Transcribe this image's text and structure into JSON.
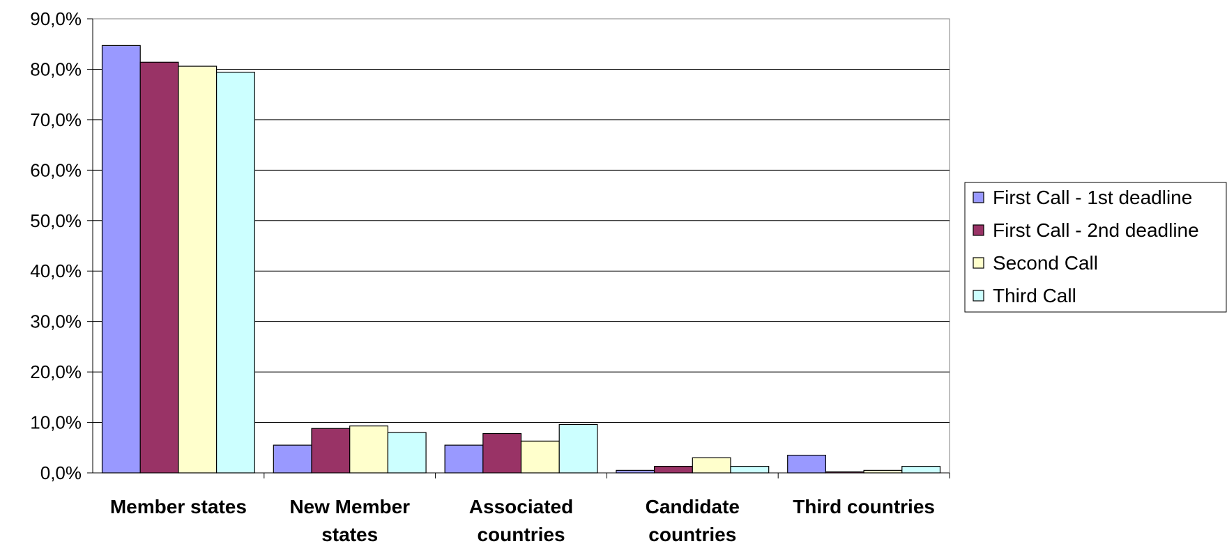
{
  "chart_data": {
    "type": "bar",
    "categories": [
      [
        "Member states"
      ],
      [
        "New Member",
        "states"
      ],
      [
        "Associated",
        "countries"
      ],
      [
        "Candidate",
        "countries"
      ],
      [
        "Third countries"
      ]
    ],
    "series": [
      {
        "name": "First Call - 1st deadline",
        "color": "#9999ff",
        "values": [
          84.7,
          5.5,
          5.5,
          0.5,
          3.5
        ]
      },
      {
        "name": "First Call - 2nd deadline",
        "color": "#993366",
        "values": [
          81.4,
          8.8,
          7.8,
          1.3,
          0.2
        ]
      },
      {
        "name": "Second Call",
        "color": "#ffffcc",
        "values": [
          80.6,
          9.3,
          6.3,
          3.0,
          0.5
        ]
      },
      {
        "name": "Third Call",
        "color": "#ccffff",
        "values": [
          79.4,
          8.0,
          9.6,
          1.3,
          1.3
        ]
      }
    ],
    "yticks": [
      "0,0%",
      "10,0%",
      "20,0%",
      "30,0%",
      "40,0%",
      "50,0%",
      "60,0%",
      "70,0%",
      "80,0%",
      "90,0%"
    ],
    "ylim": [
      0,
      90
    ],
    "grid": true,
    "legend_position": "right"
  }
}
